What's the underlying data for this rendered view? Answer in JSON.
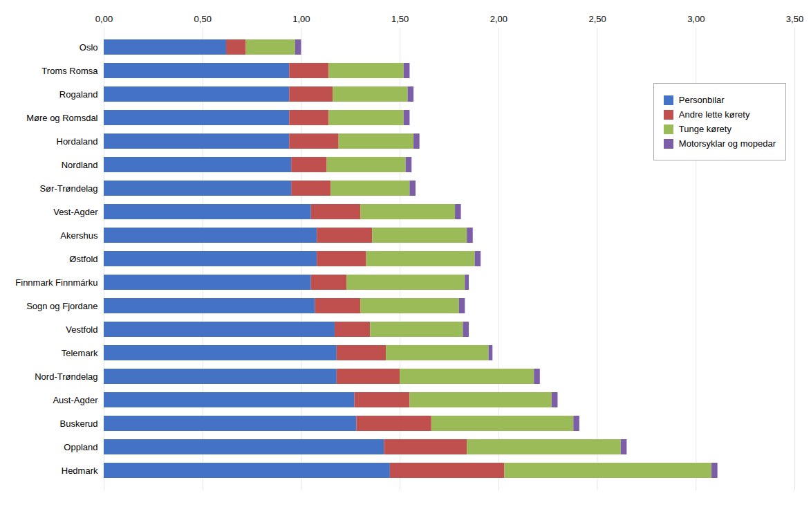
{
  "chart_data": {
    "type": "bar",
    "orientation": "horizontal",
    "stacked": true,
    "categories": [
      "Oslo",
      "Troms Romsa",
      "Rogaland",
      "Møre og Romsdal",
      "Hordaland",
      "Nordland",
      "Sør-Trøndelag",
      "Vest-Agder",
      "Akershus",
      "Østfold",
      "Finnmark Finnmárku",
      "Sogn og Fjordane",
      "Vestfold",
      "Telemark",
      "Nord-Trøndelag",
      "Aust-Agder",
      "Buskerud",
      "Oppland",
      "Hedmark"
    ],
    "series": [
      {
        "name": "Personbilar",
        "color": "#4472C4",
        "values": [
          0.62,
          0.94,
          0.94,
          0.94,
          0.94,
          0.95,
          0.95,
          1.05,
          1.08,
          1.08,
          1.05,
          1.07,
          1.17,
          1.18,
          1.18,
          1.27,
          1.28,
          1.42,
          1.45
        ]
      },
      {
        "name": "Andre lette kørety",
        "color": "#C0504D",
        "values": [
          0.1,
          0.2,
          0.22,
          0.2,
          0.25,
          0.18,
          0.2,
          0.25,
          0.28,
          0.25,
          0.18,
          0.23,
          0.18,
          0.25,
          0.32,
          0.28,
          0.38,
          0.42,
          0.58
        ]
      },
      {
        "name": "Tunge kørety",
        "color": "#9BBB59",
        "values": [
          0.25,
          0.38,
          0.38,
          0.38,
          0.38,
          0.4,
          0.4,
          0.48,
          0.48,
          0.55,
          0.6,
          0.5,
          0.47,
          0.52,
          0.68,
          0.72,
          0.72,
          0.78,
          1.05
        ]
      },
      {
        "name": "Motorsyklar og mopedar",
        "color": "#7B5EA7",
        "values": [
          0.03,
          0.03,
          0.03,
          0.03,
          0.03,
          0.03,
          0.03,
          0.03,
          0.03,
          0.03,
          0.02,
          0.03,
          0.03,
          0.02,
          0.03,
          0.03,
          0.03,
          0.03,
          0.03
        ]
      }
    ],
    "xlim": [
      0,
      3.5
    ],
    "xticks": [
      {
        "value": 0.0,
        "label": "0,00"
      },
      {
        "value": 0.5,
        "label": "0,50"
      },
      {
        "value": 1.0,
        "label": "1,00"
      },
      {
        "value": 1.5,
        "label": "1,50"
      },
      {
        "value": 2.0,
        "label": "2,00"
      },
      {
        "value": 2.5,
        "label": "2,50"
      },
      {
        "value": 3.0,
        "label": "3,00"
      },
      {
        "value": 3.5,
        "label": "3,50"
      }
    ],
    "grid": true,
    "legend": "upper right"
  }
}
